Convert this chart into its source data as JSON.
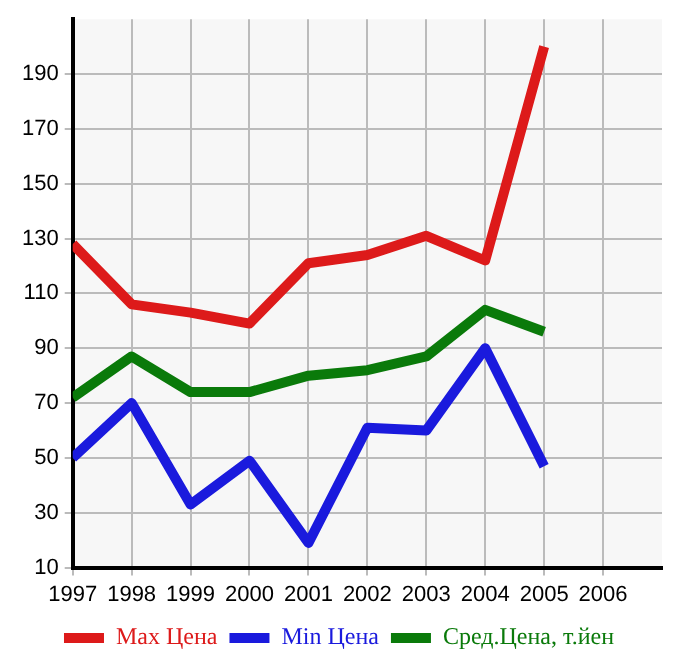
{
  "chart_data": {
    "type": "line",
    "x": [
      1997,
      1998,
      1999,
      2000,
      2001,
      2002,
      2003,
      2004,
      2005
    ],
    "series": [
      {
        "name": "Max Цена",
        "color": "#dd1a1a",
        "values": [
          128,
          106,
          103,
          99,
          121,
          124,
          131,
          122,
          200
        ]
      },
      {
        "name": "Min Цена",
        "color": "#1a1add",
        "values": [
          50,
          70,
          33,
          49,
          19,
          61,
          60,
          90,
          47
        ]
      },
      {
        "name": "Сред.Цена, т.йен",
        "color": "#0a7a0a",
        "values": [
          72,
          87,
          74,
          74,
          80,
          82,
          87,
          104,
          96
        ]
      }
    ],
    "xlim": [
      1997,
      2007
    ],
    "xticks": [
      1997,
      1998,
      1999,
      2000,
      2001,
      2002,
      2003,
      2004,
      2005,
      2006
    ],
    "ylim": [
      10,
      210
    ],
    "yticks": [
      10,
      30,
      50,
      70,
      90,
      110,
      130,
      150,
      170,
      190
    ],
    "grid": true,
    "legend": "bottom",
    "marker": "none",
    "line_style": "solid"
  }
}
